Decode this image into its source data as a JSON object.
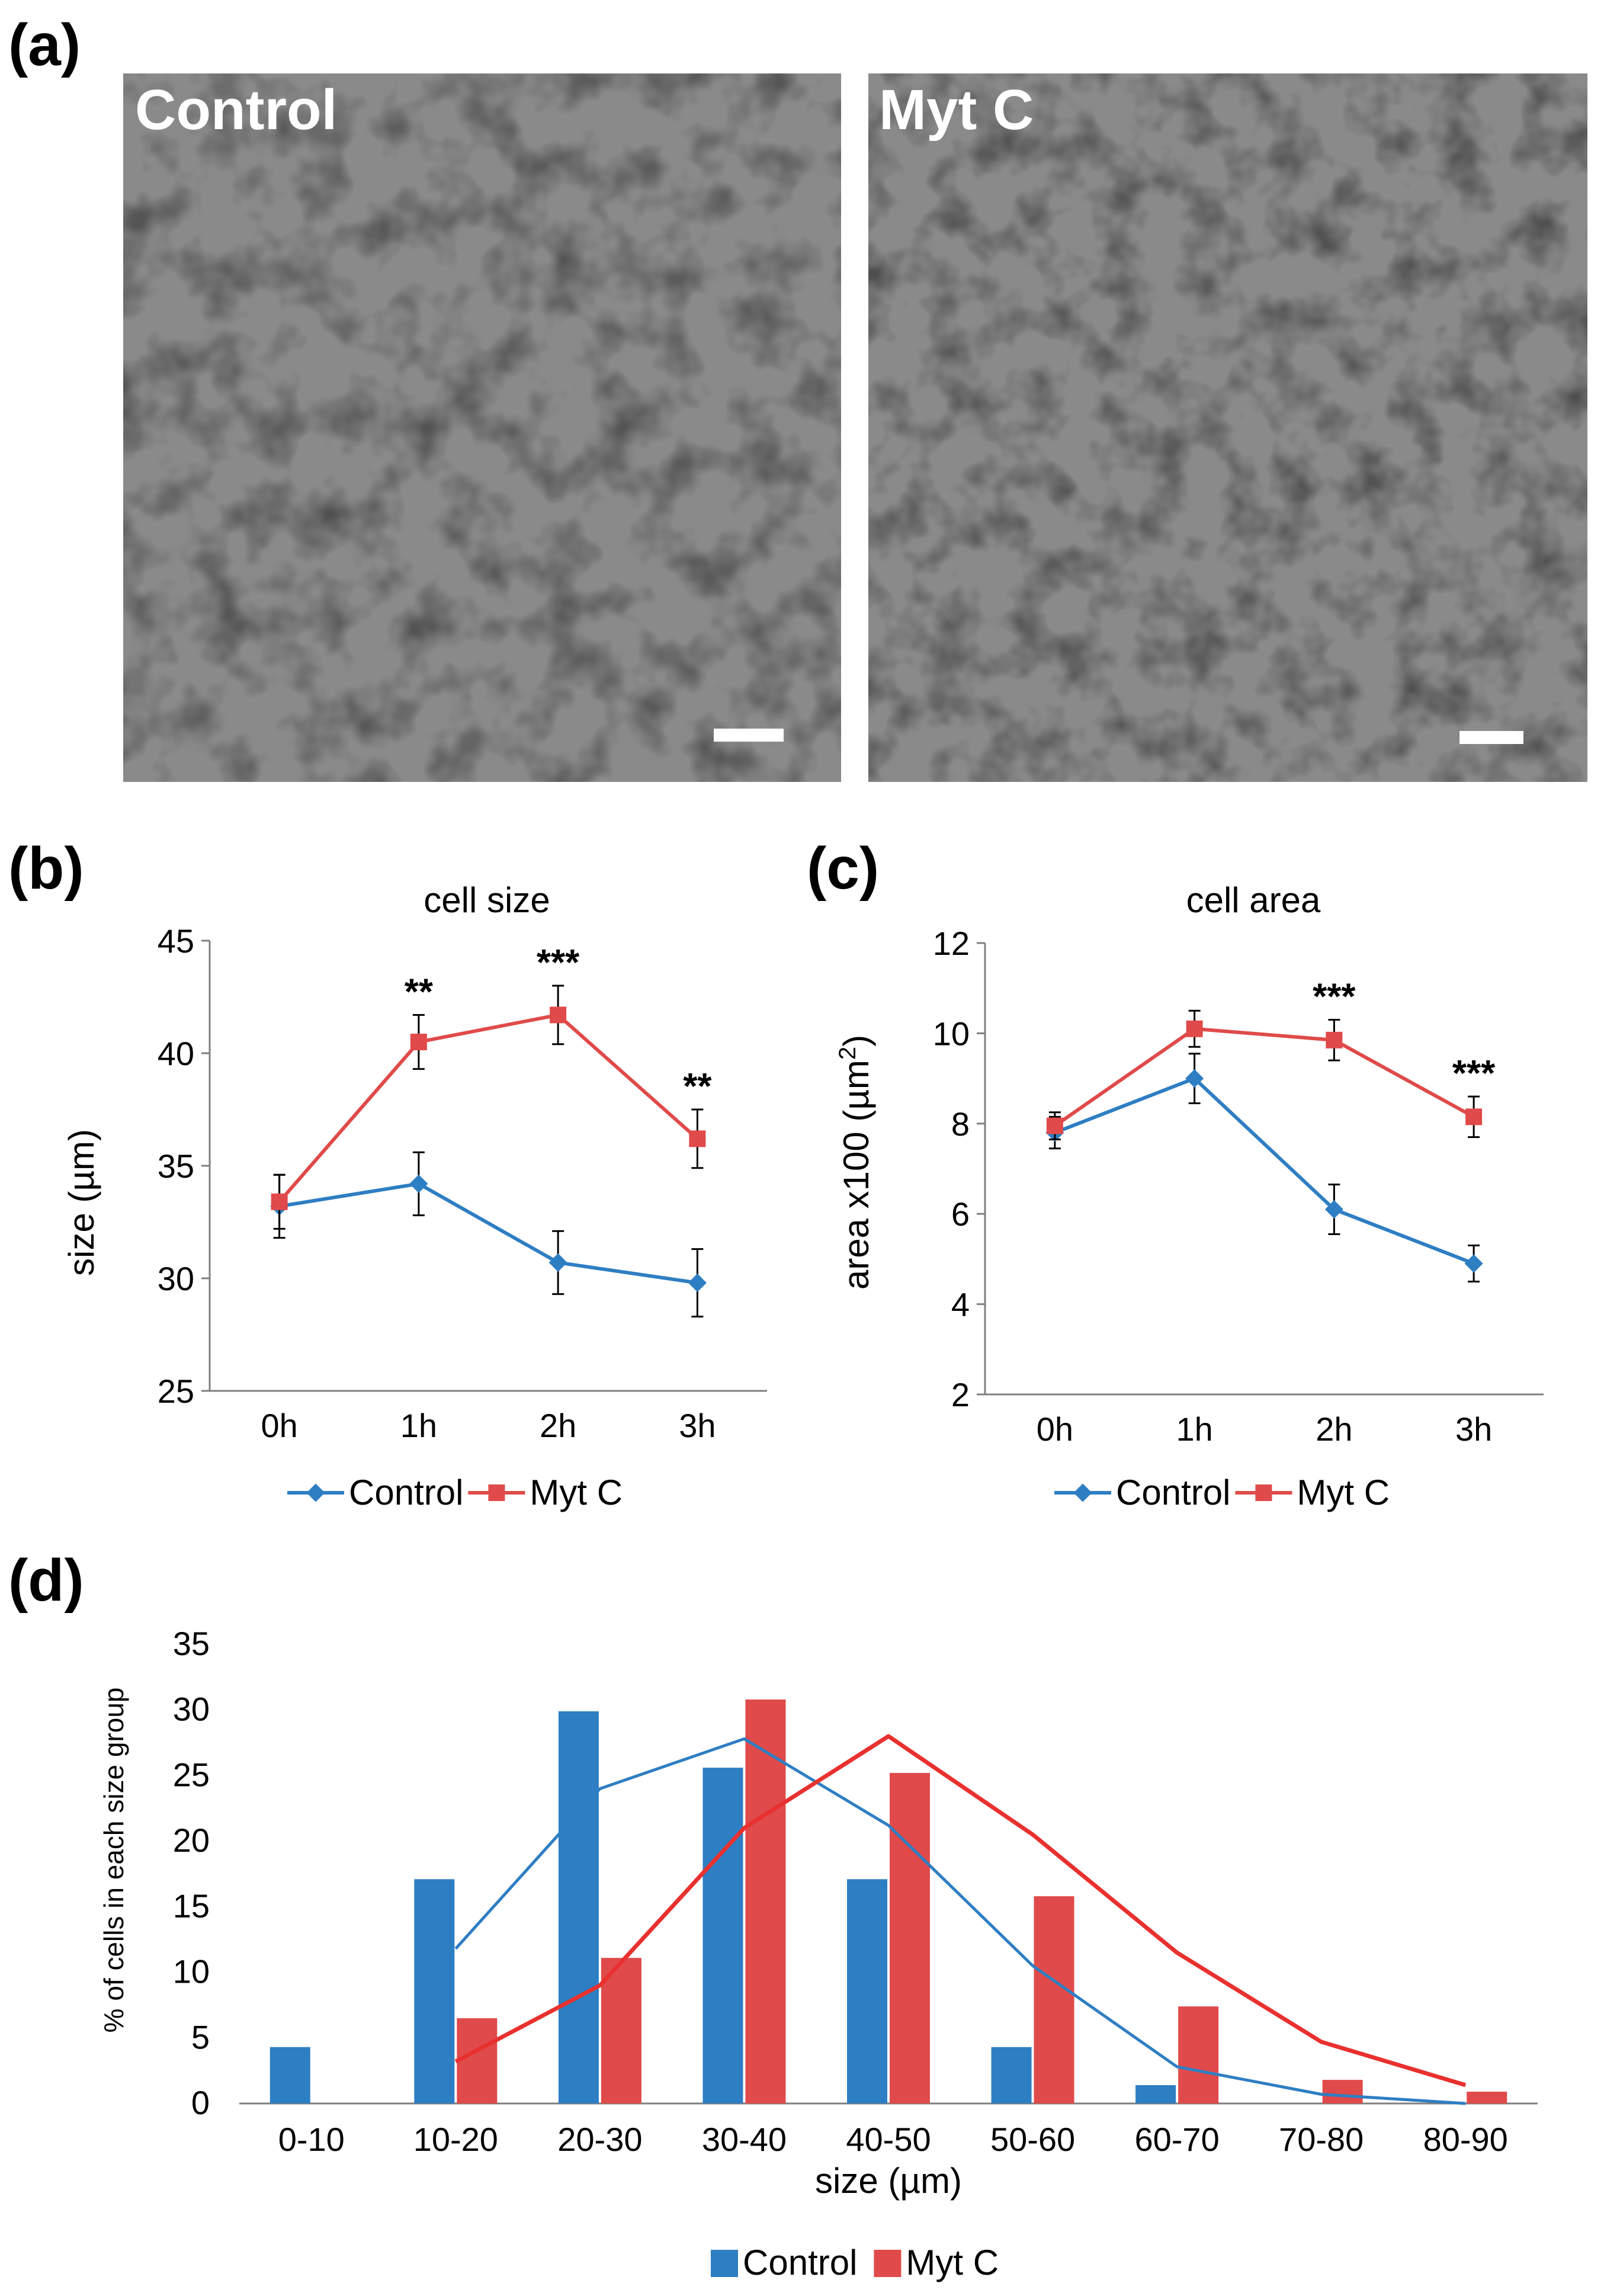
{
  "colors": {
    "control": "#2E7EC3",
    "mytc": "#E04A4A",
    "mytc_line": "#E8312F",
    "axis": "#7f7f7f"
  },
  "panel_a": {
    "label": "(a)",
    "left_label": "Control",
    "right_label": "Myt C"
  },
  "chart_data": [
    {
      "id": "b",
      "panel_label": "(b)",
      "type": "line",
      "title": "cell size",
      "ylabel": "size (µm)",
      "xlabel": "",
      "categories": [
        "0h",
        "1h",
        "2h",
        "3h"
      ],
      "ylim": [
        25,
        45
      ],
      "yticks": [
        25,
        30,
        35,
        40,
        45
      ],
      "series": [
        {
          "name": "Control",
          "values": [
            33.2,
            34.2,
            30.7,
            29.8
          ],
          "errors": [
            1.4,
            1.4,
            1.4,
            1.5
          ]
        },
        {
          "name": "Myt C",
          "values": [
            33.4,
            40.5,
            41.7,
            36.2
          ],
          "errors": [
            1.2,
            1.2,
            1.3,
            1.3
          ]
        }
      ],
      "annotations": [
        {
          "category": "1h",
          "text": "**"
        },
        {
          "category": "2h",
          "text": "***"
        },
        {
          "category": "3h",
          "text": "**"
        }
      ],
      "legend": [
        "Control",
        "Myt C"
      ]
    },
    {
      "id": "c",
      "panel_label": "(c)",
      "type": "line",
      "title": "cell area",
      "ylabel_main": "area x100 (µm",
      "ylabel_sup": "2",
      "ylabel_tail": ")",
      "xlabel": "",
      "categories": [
        "0h",
        "1h",
        "2h",
        "3h"
      ],
      "ylim": [
        2,
        12
      ],
      "yticks": [
        2,
        4,
        6,
        8,
        10,
        12
      ],
      "series": [
        {
          "name": "Control",
          "values": [
            7.8,
            9.0,
            6.1,
            4.9
          ],
          "errors": [
            0.35,
            0.55,
            0.55,
            0.4
          ]
        },
        {
          "name": "Myt C",
          "values": [
            7.95,
            10.1,
            9.85,
            8.15
          ],
          "errors": [
            0.3,
            0.4,
            0.45,
            0.45
          ]
        }
      ],
      "annotations": [
        {
          "category": "2h",
          "text": "***"
        },
        {
          "category": "3h",
          "text": "***"
        }
      ],
      "legend": [
        "Control",
        "Myt C"
      ]
    },
    {
      "id": "d",
      "panel_label": "(d)",
      "type": "bar",
      "title": "",
      "ylabel": "% of cells in each size group",
      "xlabel": "size (µm)",
      "categories": [
        "0-10",
        "10-20",
        "20-30",
        "30-40",
        "40-50",
        "50-60",
        "60-70",
        "70-80",
        "80-90"
      ],
      "ylim": [
        0,
        35
      ],
      "yticks": [
        0,
        5,
        10,
        15,
        20,
        25,
        30,
        35
      ],
      "series": [
        {
          "name": "Control",
          "values": [
            4.3,
            17.1,
            29.9,
            25.6,
            17.1,
            4.3,
            1.4,
            0,
            0
          ]
        },
        {
          "name": "Myt C",
          "values": [
            0,
            6.5,
            11.1,
            30.8,
            25.2,
            15.8,
            7.4,
            1.8,
            0.9
          ]
        }
      ],
      "trend_lines": [
        {
          "name": "Control",
          "values": [
            null,
            11.8,
            24.0,
            27.8,
            21.2,
            10.5,
            2.8,
            0.7,
            0
          ]
        },
        {
          "name": "Myt C",
          "values": [
            null,
            3.2,
            9.0,
            21.0,
            28.0,
            20.5,
            11.5,
            4.7,
            1.4
          ]
        }
      ],
      "legend": [
        "Control",
        "Myt C"
      ]
    }
  ]
}
